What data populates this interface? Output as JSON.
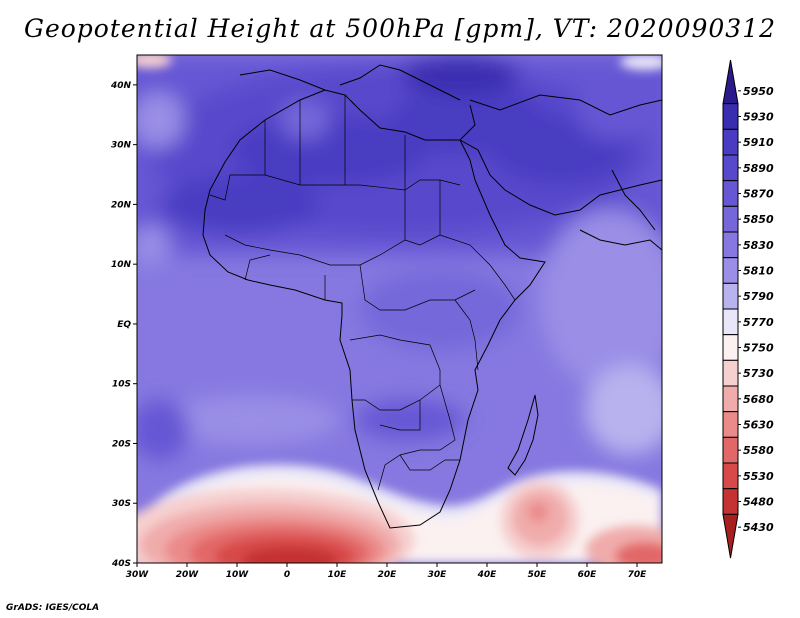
{
  "title": "Geopotential Height at 500hPa [gpm], VT: 2020090312",
  "footer": "GrADS: IGES/COLA",
  "map": {
    "lon_range": [
      -30,
      75
    ],
    "lat_range": [
      -40,
      45
    ],
    "x_ticks": [
      {
        "value": -30,
        "label": "30W"
      },
      {
        "value": -20,
        "label": "20W"
      },
      {
        "value": -10,
        "label": "10W"
      },
      {
        "value": 0,
        "label": "0"
      },
      {
        "value": 10,
        "label": "10E"
      },
      {
        "value": 20,
        "label": "20E"
      },
      {
        "value": 30,
        "label": "30E"
      },
      {
        "value": 40,
        "label": "40E"
      },
      {
        "value": 50,
        "label": "50E"
      },
      {
        "value": 60,
        "label": "60E"
      },
      {
        "value": 70,
        "label": "70E"
      }
    ],
    "y_ticks": [
      {
        "value": 40,
        "label": "40N"
      },
      {
        "value": 30,
        "label": "30N"
      },
      {
        "value": 20,
        "label": "20N"
      },
      {
        "value": 10,
        "label": "10N"
      },
      {
        "value": 0,
        "label": "EQ"
      },
      {
        "value": -10,
        "label": "10S"
      },
      {
        "value": -20,
        "label": "20S"
      },
      {
        "value": -30,
        "label": "30S"
      },
      {
        "value": -40,
        "label": "40S"
      }
    ]
  },
  "colorbar": {
    "levels": [
      "5950",
      "5930",
      "5910",
      "5890",
      "5870",
      "5850",
      "5830",
      "5810",
      "5790",
      "5770",
      "5750",
      "5730",
      "5680",
      "5630",
      "5580",
      "5530",
      "5480",
      "5430"
    ],
    "colors": [
      "#2a1a8c",
      "#3a2eb0",
      "#4a3cc2",
      "#5848cc",
      "#6657d4",
      "#7567da",
      "#8678e0",
      "#9a8ee6",
      "#b8b2ee",
      "#e8e6f8",
      "#fbf1f1",
      "#f6cfcf",
      "#f0acab",
      "#ea8a89",
      "#e26868",
      "#d84a4a",
      "#c53232",
      "#a71f1f"
    ]
  }
}
